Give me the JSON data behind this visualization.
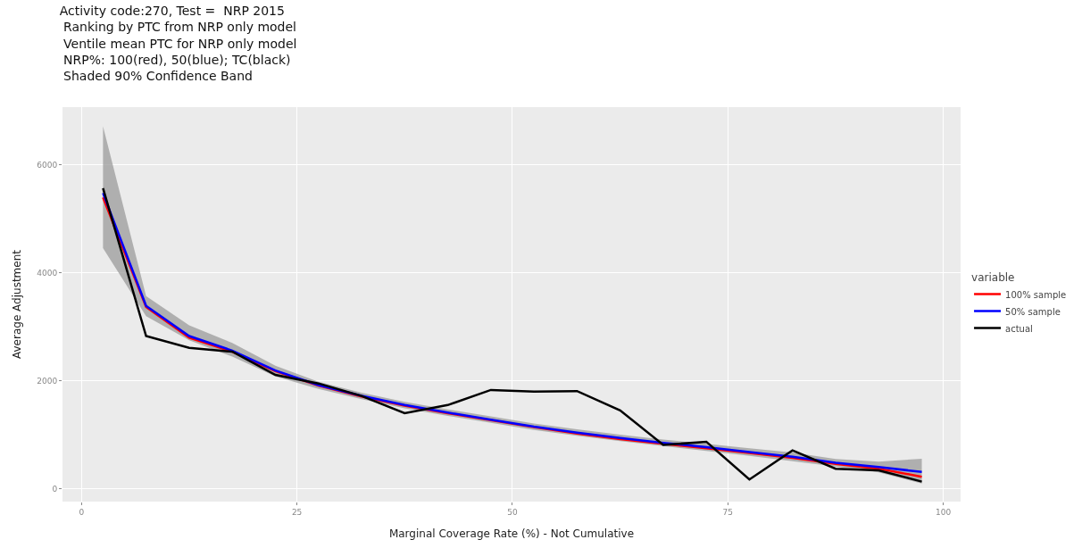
{
  "chart_data": {
    "type": "line",
    "title": "Activity code:270, Test =  NRP 2015\n Ranking by PTC from NRP only model\n Ventile mean PTC for NRP only model\n NRP%: 100(red), 50(blue); TC(black)\n Shaded 90% Confidence Band",
    "xlabel": "Marginal Coverage Rate (%) - Not Cumulative",
    "ylabel": "Average Adjustment",
    "legend_title": "variable",
    "x": [
      2.5,
      7.5,
      12.5,
      17.5,
      22.5,
      27.5,
      32.5,
      37.5,
      42.5,
      47.5,
      52.5,
      57.5,
      62.5,
      67.5,
      72.5,
      77.5,
      82.5,
      87.5,
      92.5,
      97.5
    ],
    "series": [
      {
        "name": "100% sample",
        "color": "#ff0000",
        "values": [
          5400,
          3370,
          2800,
          2540,
          2180,
          1910,
          1710,
          1540,
          1400,
          1270,
          1140,
          1020,
          920,
          830,
          750,
          660,
          570,
          460,
          370,
          220
        ],
        "lower": [
          4460,
          3200,
          2750,
          2450,
          2080,
          1850,
          1660,
          1490,
          1350,
          1220,
          1090,
          980,
          880,
          790,
          700,
          610,
          510,
          410,
          300,
          95
        ],
        "upper": [
          6720,
          3570,
          3030,
          2700,
          2280,
          1980,
          1780,
          1610,
          1470,
          1340,
          1210,
          1100,
          1000,
          910,
          830,
          750,
          670,
          550,
          500,
          555
        ]
      },
      {
        "name": "50% sample",
        "color": "#0000ff",
        "values": [
          5480,
          3390,
          2830,
          2560,
          2190,
          1920,
          1720,
          1550,
          1410,
          1280,
          1150,
          1040,
          940,
          850,
          770,
          680,
          590,
          480,
          400,
          310
        ]
      },
      {
        "name": "actual",
        "color": "#000000",
        "values": [
          5570,
          2830,
          2610,
          2540,
          2110,
          1950,
          1720,
          1400,
          1550,
          1830,
          1800,
          1810,
          1450,
          810,
          870,
          170,
          710,
          370,
          340,
          130
        ]
      }
    ],
    "xlim": [
      -2.2,
      102
    ],
    "ylim": [
      -240,
      7075
    ],
    "xticks": [
      0,
      25,
      50,
      75,
      100
    ],
    "yticks": [
      0,
      2000,
      4000,
      6000
    ],
    "grid": true,
    "legend": "right",
    "marker": "none",
    "line_style": "solid"
  }
}
